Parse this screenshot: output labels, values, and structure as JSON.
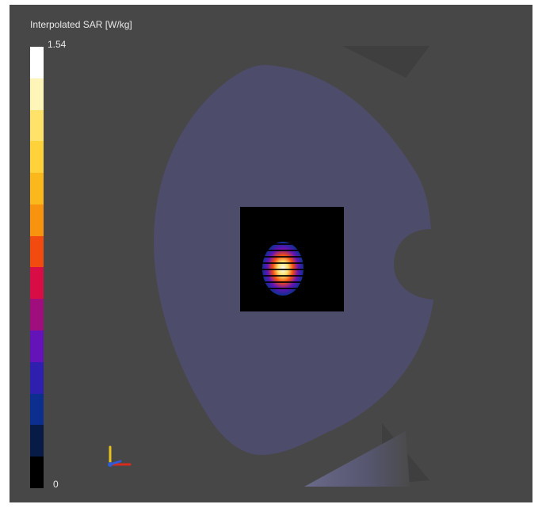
{
  "legend": {
    "title": "Interpolated SAR [W/kg]",
    "max_label": "1.54",
    "min_label": "0",
    "colors": [
      "#ffffff",
      "#fff5b8",
      "#ffe26a",
      "#ffd13a",
      "#fbb81d",
      "#f7930f",
      "#f24b10",
      "#d90d45",
      "#a00e7e",
      "#6413b8",
      "#2e1fae",
      "#0c2f8f",
      "#081a46",
      "#000000"
    ]
  },
  "viewport": {
    "background": "#474747",
    "phantom_color": "#4d4c6b",
    "sar_box_color": "#000000"
  }
}
